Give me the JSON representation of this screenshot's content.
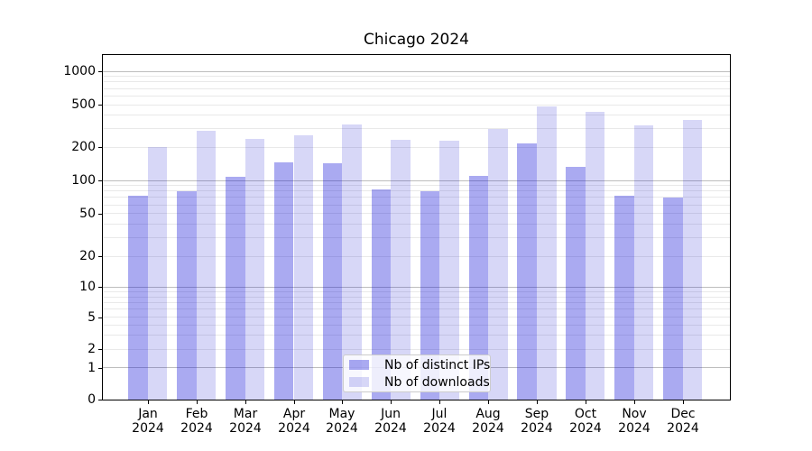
{
  "title_text": "Chicago 2024",
  "axes": {
    "y_tick_labels": [
      "0",
      "1",
      "2",
      "5",
      "10",
      "20",
      "50",
      "100",
      "200",
      "500",
      "1000"
    ],
    "y_tick_values": [
      0,
      1,
      2,
      5,
      10,
      20,
      50,
      100,
      200,
      500,
      1000
    ],
    "x_months": [
      "Jan",
      "Feb",
      "Mar",
      "Apr",
      "May",
      "Jun",
      "Jul",
      "Aug",
      "Sep",
      "Oct",
      "Nov",
      "Dec"
    ],
    "x_year": "2024"
  },
  "legend": {
    "items": [
      {
        "key": "distinct_ips",
        "label": "Nb of distinct IPs"
      },
      {
        "key": "downloads",
        "label": "Nb of downloads"
      }
    ]
  },
  "colors": {
    "distinct_ips": "rgba(10,10,215,0.345)",
    "downloads": "rgba(0,0,205,0.155)",
    "major_grid": "#bdbdbd",
    "minor_grid": "#e9e9e9",
    "spine": "#000000",
    "legend_border": "#cccccc",
    "legend_bg": "rgba(255,255,255,0.8)"
  },
  "chart_data": {
    "type": "bar",
    "title": "Chicago 2024",
    "categories": [
      "Jan 2024",
      "Feb 2024",
      "Mar 2024",
      "Apr 2024",
      "May 2024",
      "Jun 2024",
      "Jul 2024",
      "Aug 2024",
      "Sep 2024",
      "Oct 2024",
      "Nov 2024",
      "Dec 2024"
    ],
    "series": [
      {
        "name": "Nb of distinct IPs",
        "key": "distinct_ips",
        "values": [
          72,
          80,
          108,
          145,
          143,
          83,
          79,
          110,
          215,
          131,
          72,
          69
        ]
      },
      {
        "name": "Nb of downloads",
        "key": "downloads",
        "values": [
          199,
          285,
          238,
          258,
          322,
          235,
          230,
          295,
          478,
          430,
          316,
          355
        ]
      }
    ],
    "yscale": "symlog",
    "yticks": [
      0,
      1,
      2,
      5,
      10,
      20,
      50,
      100,
      200,
      500,
      1000
    ],
    "ylim": [
      0,
      1430
    ],
    "grid": true,
    "legend_position": "lower center"
  }
}
